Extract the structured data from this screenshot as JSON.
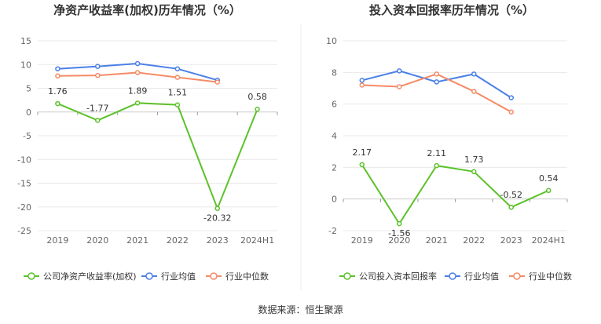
{
  "charts": {
    "left_title": "净资产收益率(加权)历年情况（%）",
    "right_title": "投入资本回报率历年情况（%）"
  },
  "footer": {
    "source": "数据来源：恒生聚源"
  },
  "colors": {
    "company": "#5cc22a",
    "average": "#4a7fe8",
    "median": "#f58a66",
    "grid": "#e8e8e8",
    "axis": "#999999"
  },
  "chart_data": [
    {
      "type": "line",
      "title": "净资产收益率(加权)历年情况（%）",
      "categories": [
        "2019",
        "2020",
        "2021",
        "2022",
        "2023",
        "2024H1"
      ],
      "ylim": [
        -25,
        15
      ],
      "yticks": [
        15,
        10,
        5,
        0,
        -5,
        -10,
        -15,
        -20,
        -25
      ],
      "grid": true,
      "legend_position": "bottom",
      "series": [
        {
          "name": "公司净资产收益率(加权)",
          "color": "#5cc22a",
          "labels": true,
          "values": [
            1.76,
            -1.77,
            1.89,
            1.51,
            -20.32,
            0.58
          ]
        },
        {
          "name": "行业均值",
          "color": "#4a7fe8",
          "labels": false,
          "values": [
            9.1,
            9.6,
            10.2,
            9.1,
            6.7,
            null
          ]
        },
        {
          "name": "行业中位数",
          "color": "#f58a66",
          "labels": false,
          "values": [
            7.6,
            7.7,
            8.3,
            7.3,
            6.3,
            null
          ]
        }
      ]
    },
    {
      "type": "line",
      "title": "投入资本回报率历年情况（%）",
      "categories": [
        "2019",
        "2020",
        "2021",
        "2022",
        "2023",
        "2024H1"
      ],
      "ylim": [
        -2,
        10
      ],
      "yticks": [
        10,
        8,
        6,
        4,
        2,
        0,
        -2
      ],
      "grid": true,
      "legend_position": "bottom",
      "series": [
        {
          "name": "公司投入资本回报率",
          "color": "#5cc22a",
          "labels": true,
          "values": [
            2.17,
            -1.56,
            2.11,
            1.73,
            -0.52,
            0.54
          ]
        },
        {
          "name": "行业均值",
          "color": "#4a7fe8",
          "labels": false,
          "values": [
            7.5,
            8.1,
            7.4,
            7.9,
            6.4,
            null
          ]
        },
        {
          "name": "行业中位数",
          "color": "#f58a66",
          "labels": false,
          "values": [
            7.2,
            7.1,
            7.9,
            6.8,
            5.5,
            null
          ]
        }
      ]
    }
  ]
}
